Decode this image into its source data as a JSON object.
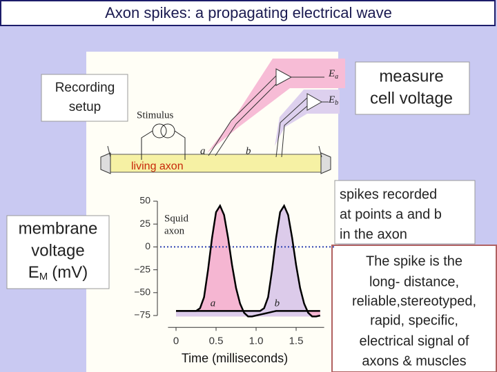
{
  "header": {
    "title": "Axon spikes: a propagating electrical wave"
  },
  "diagram": {
    "recording_box": [
      "Recording",
      "setup"
    ],
    "measure_box": [
      "measure",
      "cell voltage"
    ],
    "stimulus": "Stimulus",
    "point_a": "a",
    "point_b": "b",
    "electrode_a": {
      "symbol": "E",
      "subscript": "a"
    },
    "electrode_b": {
      "symbol": "E",
      "subscript": "b"
    },
    "axon_label": "living axon"
  },
  "chart_data": {
    "type": "line",
    "annotation": [
      "Squid",
      "axon"
    ],
    "xlabel": "Time (milliseconds)",
    "ylabel": {
      "lines": [
        "membrane",
        "voltage"
      ],
      "symbol": "E",
      "subscript": "M",
      "unit": "(mV)"
    },
    "x": [
      0,
      0.05,
      0.1,
      0.15,
      0.2,
      0.25,
      0.3,
      0.35,
      0.4,
      0.45,
      0.5,
      0.55,
      0.6,
      0.65,
      0.7,
      0.75,
      0.8,
      0.85,
      0.9,
      0.95,
      1.0,
      1.05,
      1.1,
      1.15,
      1.2,
      1.25,
      1.3,
      1.35,
      1.4,
      1.45,
      1.5,
      1.55,
      1.6,
      1.65,
      1.7,
      1.75,
      1.8
    ],
    "series": [
      {
        "name": "a",
        "color": "#000000",
        "fill": "#f5b6d2",
        "values": [
          -70,
          -70,
          -70,
          -70,
          -70,
          -70,
          -67,
          -55,
          -25,
          10,
          38,
          45,
          35,
          10,
          -20,
          -45,
          -62,
          -72,
          -76,
          -76,
          -75,
          -74,
          -73,
          -72,
          -71,
          -70,
          -70,
          -70,
          -70,
          -70,
          -70,
          -70,
          -70,
          -70,
          -70,
          -70,
          -70
        ]
      },
      {
        "name": "b",
        "color": "#000000",
        "fill": "#dccbea",
        "values": [
          -70,
          -70,
          -70,
          -70,
          -70,
          -70,
          -70,
          -70,
          -70,
          -70,
          -70,
          -70,
          -70,
          -70,
          -70,
          -70,
          -70,
          -70,
          -70,
          -70,
          -70,
          -70,
          -67,
          -55,
          -25,
          10,
          38,
          45,
          35,
          10,
          -20,
          -45,
          -62,
          -72,
          -76,
          -76,
          -75
        ]
      }
    ],
    "xlim": [
      -0.1,
      1.85
    ],
    "ylim": [
      -85,
      55
    ],
    "xticks": [
      0,
      0.5,
      {
        "value": 1,
        "label": "1.0"
      },
      1.5
    ],
    "yticks": [
      50,
      25,
      0,
      {
        "value": -25,
        "label": "−25"
      },
      {
        "value": -50,
        "label": "−50"
      },
      {
        "value": -75,
        "label": "−75"
      }
    ],
    "hline": 0,
    "grid": false
  },
  "notes": {
    "spikes": [
      "spikes recorded",
      "at points a and b",
      "in the axon"
    ],
    "summary": [
      "The spike is the",
      "long- distance,",
      "reliable,stereotyped,",
      "rapid, specific,",
      "electrical signal of",
      "axons & muscles"
    ]
  }
}
